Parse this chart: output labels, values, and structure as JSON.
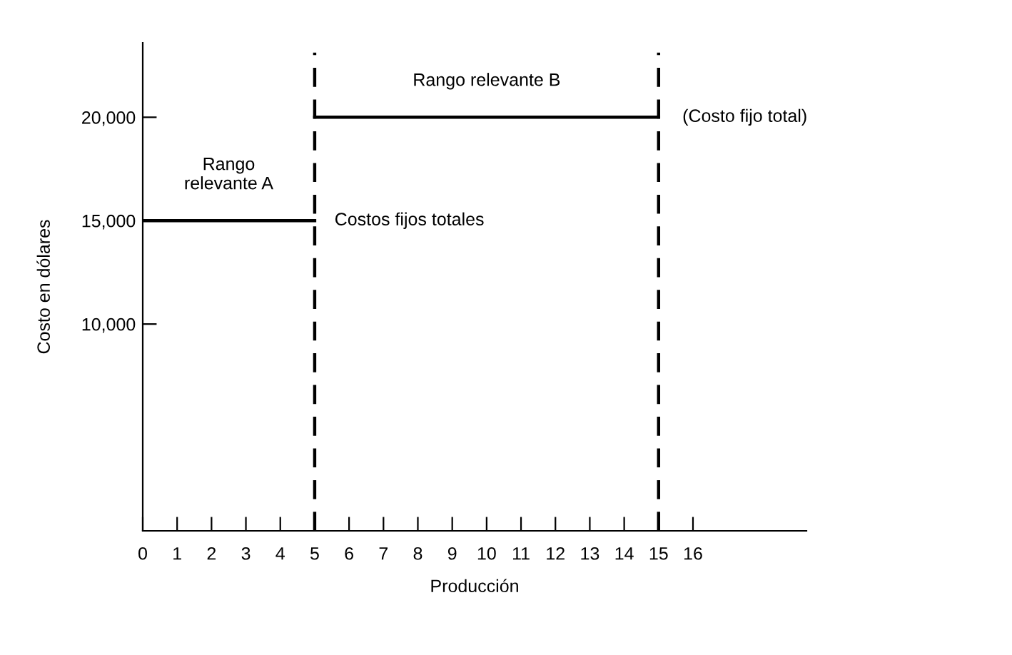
{
  "chart_data": {
    "type": "line",
    "xlabel": "Producción",
    "ylabel": "Costo en dólares",
    "series": [
      {
        "color": "#000000",
        "x": [
          0,
          5
        ],
        "values": [
          15000,
          15000
        ]
      },
      {
        "color": "#000000",
        "x": [
          5,
          15
        ],
        "values": [
          20000,
          20000
        ]
      }
    ],
    "xlim": [
      0,
      19.3
    ],
    "ylim": [
      0,
      23600
    ],
    "xticks": [
      0,
      1,
      2,
      3,
      4,
      5,
      6,
      7,
      8,
      9,
      10,
      11,
      12,
      13,
      14,
      15,
      16
    ],
    "yticks": [
      {
        "value": 10000,
        "label": "10,000"
      },
      {
        "value": 15000,
        "label": "15,000"
      },
      {
        "value": 20000,
        "label": "20,000"
      }
    ],
    "ref_lines": [
      {
        "axis": "x",
        "value": 5,
        "color": "#000000",
        "line_style": "dashed"
      },
      {
        "axis": "x",
        "value": 15,
        "color": "#000000",
        "line_style": "dashed"
      }
    ],
    "annotations": [
      {
        "text": "Rango\nrelevante A",
        "x": 2.5,
        "y": 15000
      },
      {
        "text": "Rango relevante B",
        "x": 10,
        "y": 20000
      },
      {
        "text": "Costos fijos totales",
        "x": 5,
        "y": 15000
      },
      {
        "text": "(Costo fijo total)",
        "x": 15,
        "y": 20000
      }
    ],
    "grid": false,
    "marker": "none",
    "line_style": "solid"
  }
}
